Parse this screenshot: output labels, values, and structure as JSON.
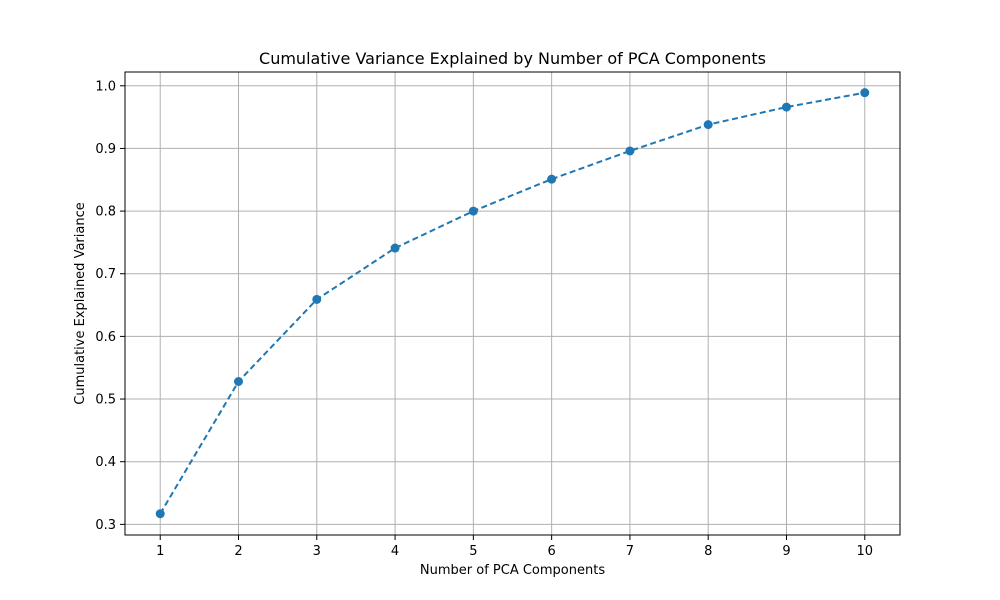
{
  "chart_data": {
    "type": "line",
    "title": "Cumulative Variance Explained by Number of PCA Components",
    "xlabel": "Number of PCA Components",
    "ylabel": "Cumulative Explained Variance",
    "x": [
      1,
      2,
      3,
      4,
      5,
      6,
      7,
      8,
      9,
      10
    ],
    "xticks": [
      "1",
      "2",
      "3",
      "4",
      "5",
      "6",
      "7",
      "8",
      "9",
      "10"
    ],
    "yticks": [
      0.3,
      0.4,
      0.5,
      0.6,
      0.7,
      0.8,
      0.9,
      1.0
    ],
    "ytick_labels": [
      "0.3",
      "0.4",
      "0.5",
      "0.6",
      "0.7",
      "0.8",
      "0.9",
      "1.0"
    ],
    "xlim": [
      0.55,
      10.45
    ],
    "ylim": [
      0.283,
      1.022
    ],
    "grid": true,
    "series": [
      {
        "values": [
          0.317,
          0.528,
          0.659,
          0.741,
          0.8,
          0.851,
          0.896,
          0.938,
          0.966,
          0.989
        ],
        "color": "#1f77b4",
        "line_style": "dashed",
        "marker": "circle"
      }
    ]
  }
}
